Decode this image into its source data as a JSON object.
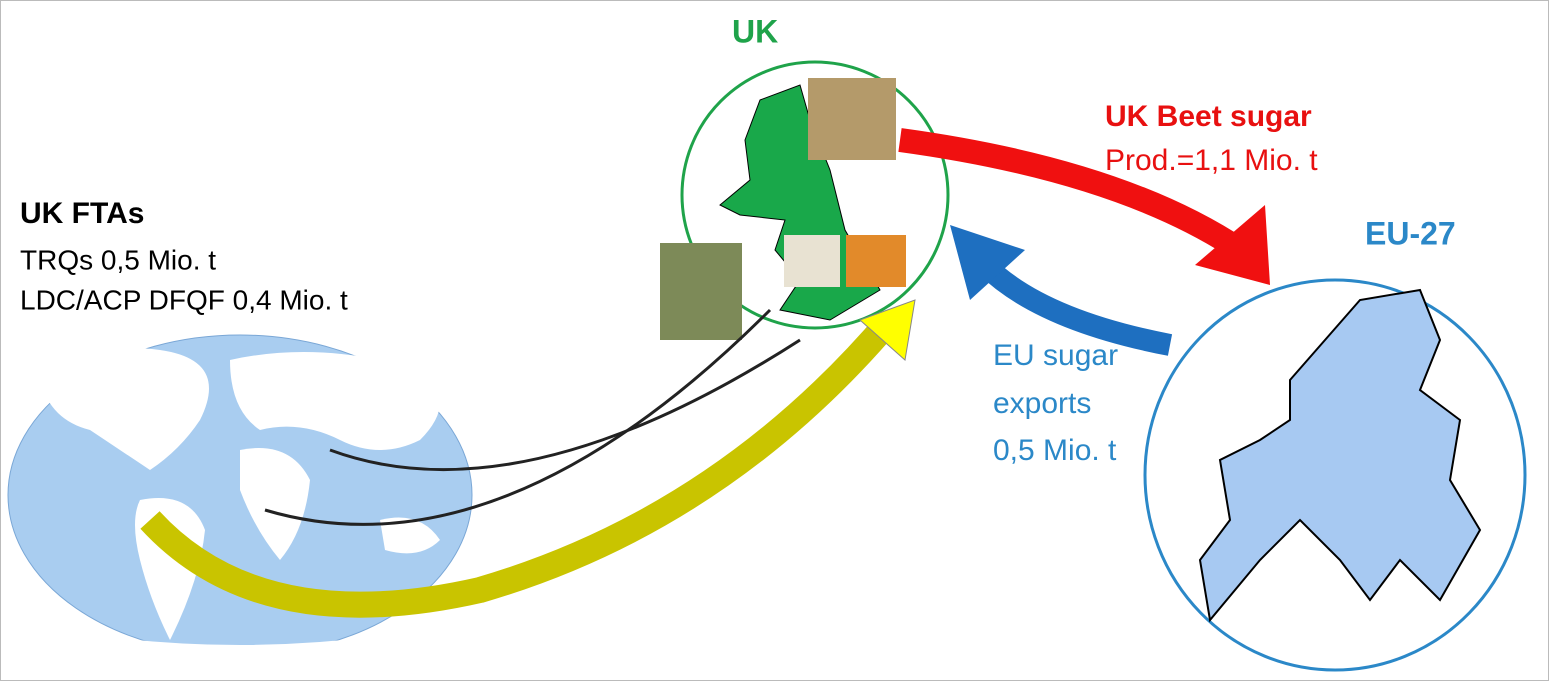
{
  "uk": {
    "label": "UK"
  },
  "eu": {
    "label": "EU-27"
  },
  "fta": {
    "title": "UK FTAs",
    "lines": [
      "TRQs 0,5 Mio. t",
      "LDC/ACP DFQF 0,4 Mio. t"
    ]
  },
  "beet": {
    "title": "UK Beet sugar",
    "detail": "Prod.=1,1 Mio. t"
  },
  "eu_exports": {
    "lines": [
      "EU sugar",
      "exports",
      "0,5 Mio. t"
    ]
  }
}
